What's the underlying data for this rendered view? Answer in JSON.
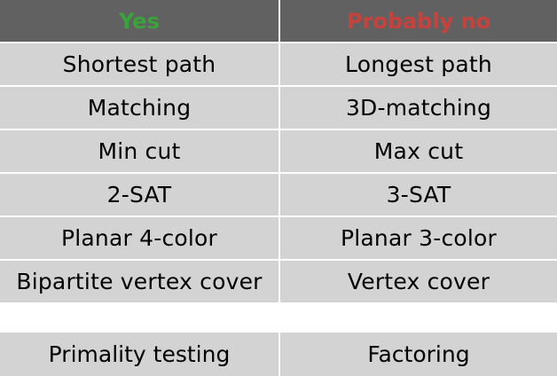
{
  "header": {
    "yes": "Yes",
    "no": "Probably no"
  },
  "pairs": [
    {
      "yes": "Shortest path",
      "no": "Longest path"
    },
    {
      "yes": "Matching",
      "no": "3D-matching"
    },
    {
      "yes": "Min cut",
      "no": "Max cut"
    },
    {
      "yes": "2-SAT",
      "no": "3-SAT"
    },
    {
      "yes": "Planar 4-color",
      "no": "Planar 3-color"
    },
    {
      "yes": "Bipartite vertex cover",
      "no": "Vertex cover"
    }
  ],
  "extra_pair": {
    "yes": "Primality testing",
    "no": "Factoring"
  },
  "colors": {
    "header_bg": "#616161",
    "cell_bg": "#d3d3d3",
    "yes_text": "#39a43a",
    "no_text": "#c8423d"
  }
}
